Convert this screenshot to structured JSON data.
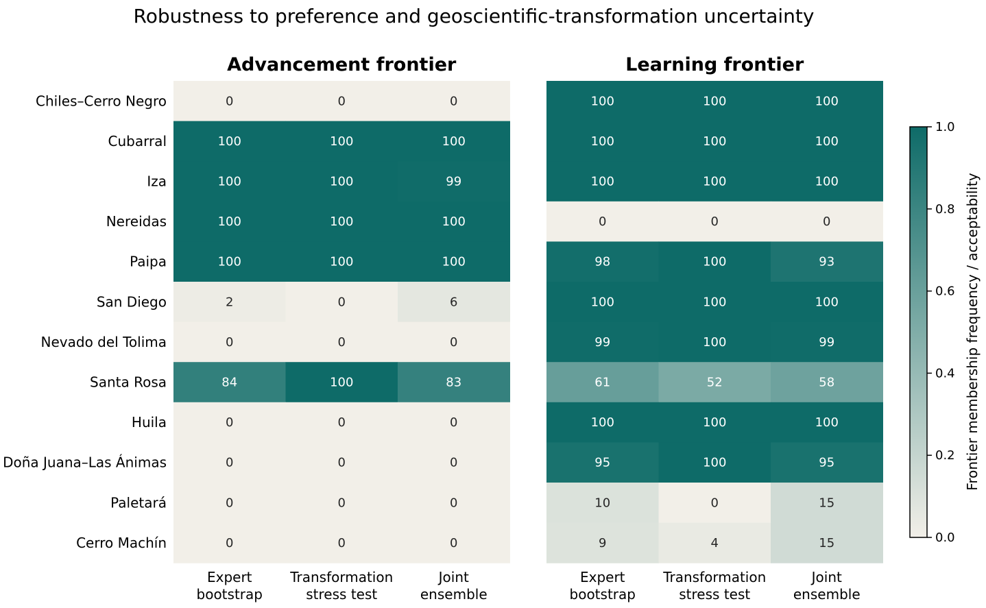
{
  "chart_data": {
    "type": "heatmap",
    "title": "Robustness to preference and geoscientific-transformation uncertainty",
    "rows": [
      "Chiles–Cerro Negro",
      "Cubarral",
      "Iza",
      "Nereidas",
      "Paipa",
      "San Diego",
      "Nevado del Tolima",
      "Santa Rosa",
      "Huila",
      "Doña Juana–Las Ánimas",
      "Paletará",
      "Cerro Machín"
    ],
    "columns": [
      [
        "Expert",
        "bootstrap"
      ],
      [
        "Transformation",
        "stress test"
      ],
      [
        "Joint",
        "ensemble"
      ]
    ],
    "panels": [
      {
        "title": "Advancement frontier",
        "values": [
          [
            0,
            0,
            0
          ],
          [
            100,
            100,
            100
          ],
          [
            100,
            100,
            99
          ],
          [
            100,
            100,
            100
          ],
          [
            100,
            100,
            100
          ],
          [
            2,
            0,
            6
          ],
          [
            0,
            0,
            0
          ],
          [
            84,
            100,
            83
          ],
          [
            0,
            0,
            0
          ],
          [
            0,
            0,
            0
          ],
          [
            0,
            0,
            0
          ],
          [
            0,
            0,
            0
          ]
        ]
      },
      {
        "title": "Learning frontier",
        "values": [
          [
            100,
            100,
            100
          ],
          [
            100,
            100,
            100
          ],
          [
            100,
            100,
            100
          ],
          [
            0,
            0,
            0
          ],
          [
            98,
            100,
            93
          ],
          [
            100,
            100,
            100
          ],
          [
            99,
            100,
            99
          ],
          [
            61,
            52,
            58
          ],
          [
            100,
            100,
            100
          ],
          [
            95,
            100,
            95
          ],
          [
            10,
            0,
            15
          ],
          [
            9,
            4,
            15
          ]
        ]
      }
    ],
    "colorbar": {
      "label": "Frontier membership frequency / acceptability",
      "range": [
        0.0,
        1.0
      ],
      "ticks": [
        "0.0",
        "0.2",
        "0.4",
        "0.6",
        "0.8",
        "1.0"
      ],
      "color_low": "#f2efe8",
      "color_high": "#0e6b68"
    }
  }
}
